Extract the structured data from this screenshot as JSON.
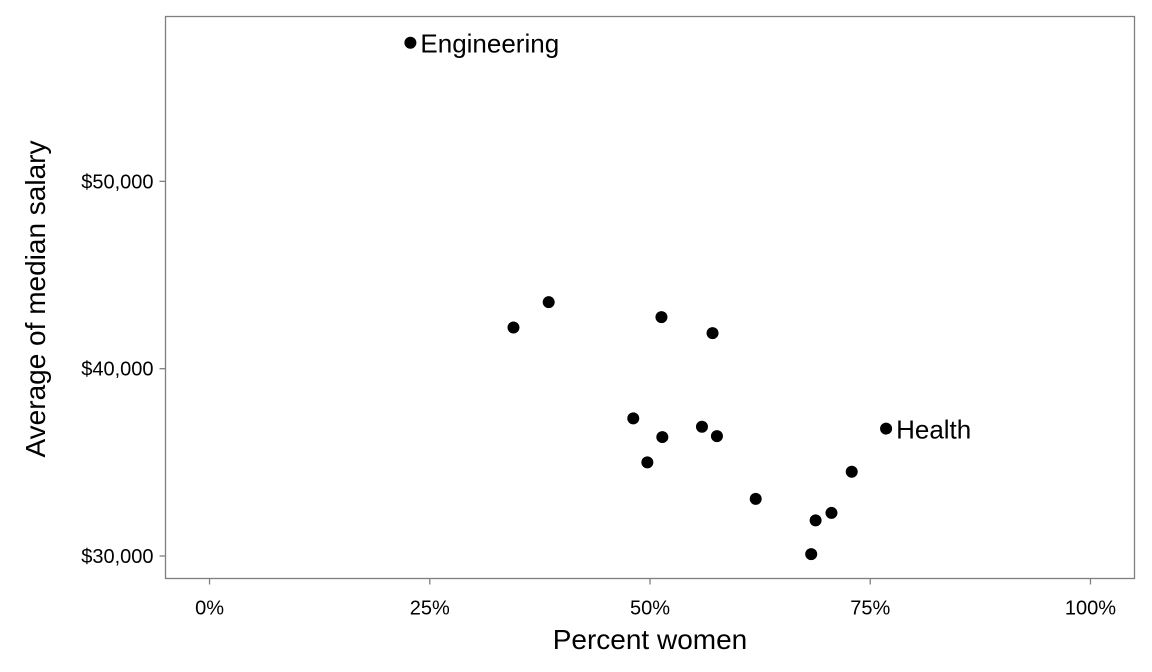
{
  "chart_data": {
    "type": "scatter",
    "title": "",
    "xlabel": "Percent women",
    "ylabel": "Average of median salary",
    "xlim": [
      -0.05,
      1.05
    ],
    "ylim": [
      28800,
      58800
    ],
    "x_ticks": [
      {
        "value": 0,
        "label": "0%"
      },
      {
        "value": 0.25,
        "label": "25%"
      },
      {
        "value": 0.5,
        "label": "50%"
      },
      {
        "value": 0.75,
        "label": "75%"
      },
      {
        "value": 1,
        "label": "100%"
      }
    ],
    "y_ticks": [
      {
        "value": 30000,
        "label": "$30,000"
      },
      {
        "value": 40000,
        "label": "$40,000"
      },
      {
        "value": 50000,
        "label": "$50,000"
      }
    ],
    "grid": false,
    "legend": "none",
    "point_color": "#000000",
    "points": [
      {
        "x": 0.228,
        "y": 57400,
        "label": "Engineering"
      },
      {
        "x": 0.345,
        "y": 42200
      },
      {
        "x": 0.385,
        "y": 43550
      },
      {
        "x": 0.481,
        "y": 37350
      },
      {
        "x": 0.497,
        "y": 35000
      },
      {
        "x": 0.513,
        "y": 42750
      },
      {
        "x": 0.514,
        "y": 36350
      },
      {
        "x": 0.559,
        "y": 36900
      },
      {
        "x": 0.571,
        "y": 41900
      },
      {
        "x": 0.576,
        "y": 36400
      },
      {
        "x": 0.62,
        "y": 33050
      },
      {
        "x": 0.683,
        "y": 30100
      },
      {
        "x": 0.688,
        "y": 31900
      },
      {
        "x": 0.706,
        "y": 32300
      },
      {
        "x": 0.729,
        "y": 34500
      },
      {
        "x": 0.768,
        "y": 36800,
        "label": "Health"
      }
    ]
  }
}
